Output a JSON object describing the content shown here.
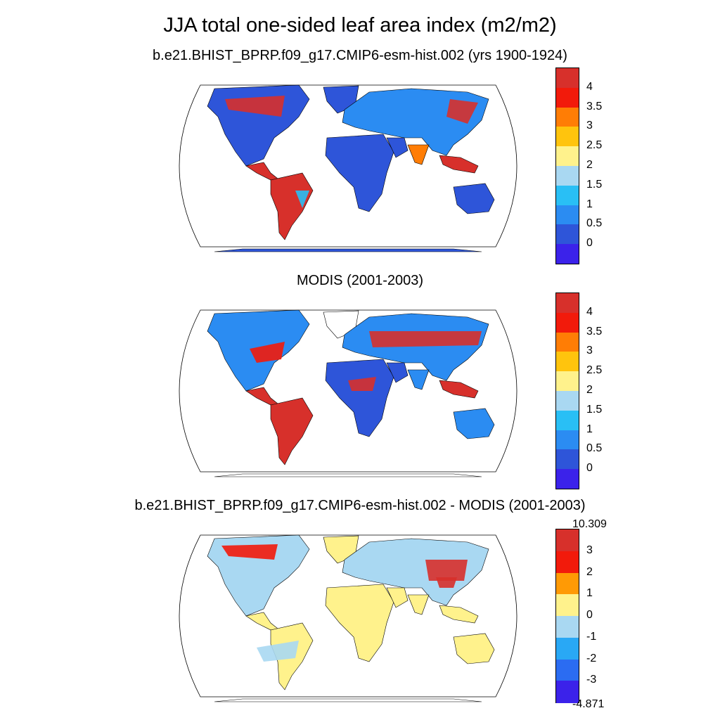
{
  "title": "JJA total one-sided leaf area index (m2/m2)",
  "panels": [
    {
      "id": "model",
      "subtitle": "b.e21.BHIST_BPRP.f09_g17.CMIP6-esm-hist.002 (yrs 1900-1924)",
      "colorbar": {
        "labels": [
          "4",
          "3.5",
          "3",
          "2.5",
          "2",
          "1.5",
          "1",
          "0.5",
          "0"
        ],
        "colors": [
          "#d7302b",
          "#f21a0b",
          "#ff7d05",
          "#ffc40d",
          "#fff28c",
          "#a9d8f2",
          "#29bff5",
          "#2b8cf2",
          "#2e55d9",
          "#3b22ea"
        ]
      }
    },
    {
      "id": "modis",
      "subtitle": "MODIS (2001-2003)",
      "colorbar": {
        "labels": [
          "4",
          "3.5",
          "3",
          "2.5",
          "2",
          "1.5",
          "1",
          "0.5",
          "0"
        ],
        "colors": [
          "#d7302b",
          "#f21a0b",
          "#ff7d05",
          "#ffc40d",
          "#fff28c",
          "#a9d8f2",
          "#29bff5",
          "#2b8cf2",
          "#2e55d9",
          "#3b22ea"
        ]
      }
    },
    {
      "id": "difference",
      "subtitle": "b.e21.BHIST_BPRP.f09_g17.CMIP6-esm-hist.002 - MODIS (2001-2003)",
      "colorbar": {
        "top_label": "10.309",
        "bottom_label": "-4.871",
        "labels": [
          "3",
          "2",
          "1",
          "0",
          "-1",
          "-2",
          "-3"
        ],
        "colors": [
          "#d7302b",
          "#f21a0b",
          "#ff9a05",
          "#fff28c",
          "#a9d8f2",
          "#29a8f5",
          "#2b6cf2",
          "#3b22ea"
        ]
      }
    }
  ]
}
